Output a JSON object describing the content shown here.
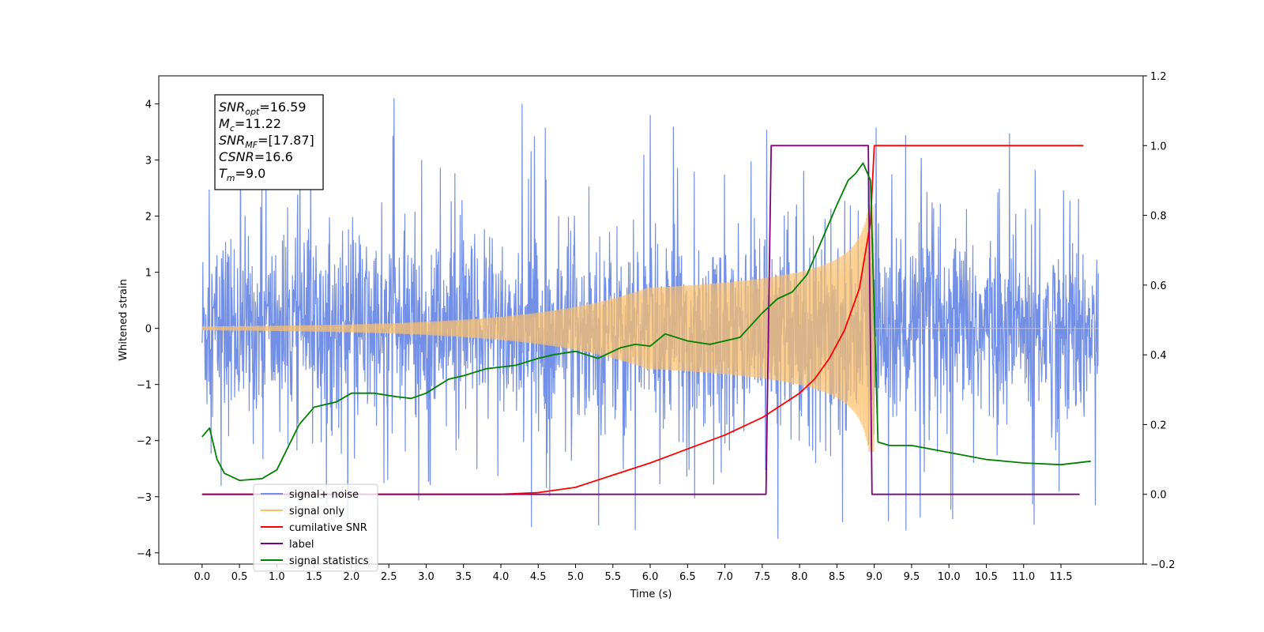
{
  "chart_data": {
    "type": "line",
    "xlabel": "Time (s)",
    "ylabel": "Whitened strain",
    "xlim": [
      -0.58,
      12.6
    ],
    "ylim": [
      -4.2,
      4.5
    ],
    "y2lim": [
      -0.2,
      1.2
    ],
    "grid": false,
    "legend_position": "lower-left",
    "x_ticks": [
      "0.0",
      "0.5",
      "1.0",
      "1.5",
      "2.0",
      "2.5",
      "3.0",
      "3.5",
      "4.0",
      "4.5",
      "5.0",
      "5.5",
      "6.0",
      "6.5",
      "7.0",
      "7.5",
      "8.0",
      "8.5",
      "9.0",
      "9.5",
      "10.0",
      "10.5",
      "11.0",
      "11.5"
    ],
    "y_ticks": [
      "4",
      "3",
      "2",
      "1",
      "0",
      "−1",
      "−2",
      "−3",
      "−4"
    ],
    "y2_ticks": [
      "1.2",
      "1.0",
      "0.8",
      "0.6",
      "0.4",
      "0.2",
      "0.0",
      "−0.2"
    ],
    "annotation": [
      {
        "label": "SNR",
        "sub": "opt",
        "value": "=16.59"
      },
      {
        "label": "M",
        "sub": "c",
        "value": "=11.22"
      },
      {
        "label": "SNR",
        "sub": "MF",
        "value": "=[17.87]"
      },
      {
        "label": "CSNR",
        "sub": "",
        "value": "=16.6"
      },
      {
        "label": "T",
        "sub": "m",
        "value": "=9.0"
      }
    ],
    "series": [
      {
        "name": "signal+ noise",
        "color": "#7390e6",
        "axis": "left",
        "envelope": {
          "x_range": [
            0.0,
            12.0
          ],
          "typical_abs_max": 2.3,
          "peak_values": [
            2.85,
            4.1,
            4.0,
            3.8,
            -3.75,
            -3.6,
            -3.5
          ]
        }
      },
      {
        "name": "signal only",
        "color": "#fbbf6a",
        "axis": "left",
        "chirp": {
          "start": 0.0,
          "merger": 9.0,
          "end": 12.0,
          "peak_amplitude": 2.2
        }
      },
      {
        "name": "cumilative SNR",
        "color": "#ff0000",
        "axis": "right",
        "x": [
          0.0,
          4.0,
          4.5,
          5.0,
          5.5,
          6.0,
          6.5,
          7.0,
          7.5,
          8.0,
          8.2,
          8.4,
          8.6,
          8.8,
          8.95,
          9.0,
          11.8
        ],
        "y": [
          0.0,
          0.0,
          0.005,
          0.02,
          0.055,
          0.09,
          0.13,
          0.17,
          0.22,
          0.29,
          0.33,
          0.39,
          0.47,
          0.59,
          0.78,
          1.0,
          1.0
        ]
      },
      {
        "name": "label",
        "color": "#800080",
        "axis": "right",
        "x": [
          0.0,
          7.55,
          7.62,
          8.92,
          8.97,
          11.75
        ],
        "y": [
          0.0,
          0.0,
          1.0,
          1.0,
          0.0,
          0.0
        ]
      },
      {
        "name": "signal statistics",
        "color": "#008000",
        "axis": "right",
        "x": [
          0.0,
          0.1,
          0.2,
          0.3,
          0.5,
          0.8,
          1.0,
          1.3,
          1.5,
          1.8,
          2.0,
          2.3,
          2.6,
          2.8,
          3.0,
          3.3,
          3.5,
          3.8,
          4.0,
          4.2,
          4.5,
          4.7,
          5.0,
          5.3,
          5.6,
          5.8,
          6.0,
          6.2,
          6.5,
          6.8,
          7.0,
          7.2,
          7.5,
          7.7,
          7.9,
          8.1,
          8.3,
          8.5,
          8.65,
          8.75,
          8.85,
          8.95,
          9.05,
          9.2,
          9.5,
          10.0,
          10.5,
          11.0,
          11.5,
          11.9
        ],
        "y": [
          0.165,
          0.19,
          0.1,
          0.06,
          0.04,
          0.045,
          0.07,
          0.2,
          0.25,
          0.265,
          0.29,
          0.29,
          0.28,
          0.275,
          0.29,
          0.33,
          0.34,
          0.36,
          0.365,
          0.37,
          0.39,
          0.4,
          0.41,
          0.39,
          0.42,
          0.43,
          0.425,
          0.46,
          0.44,
          0.43,
          0.44,
          0.45,
          0.52,
          0.56,
          0.58,
          0.63,
          0.73,
          0.83,
          0.9,
          0.92,
          0.95,
          0.9,
          0.15,
          0.14,
          0.14,
          0.12,
          0.1,
          0.09,
          0.085,
          0.095
        ]
      }
    ]
  }
}
